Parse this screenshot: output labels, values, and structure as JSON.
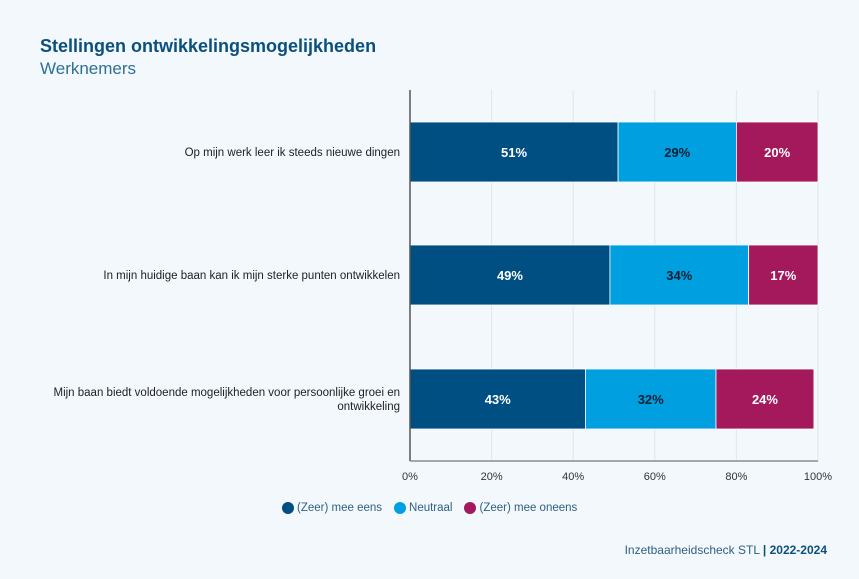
{
  "header": {
    "title": "Stellingen ontwikkelingsmogelijkheden",
    "subtitle": "Werknemers"
  },
  "chart_data": {
    "type": "bar",
    "orientation": "horizontal",
    "stacked": true,
    "title": "Stellingen ontwikkelingsmogelijkheden",
    "subtitle": "Werknemers",
    "categories": [
      [
        "Op mijn werk leer ik steeds nieuwe dingen"
      ],
      [
        "In mijn huidige baan kan ik mijn sterke punten ontwikkelen"
      ],
      [
        "Mijn baan biedt voldoende mogelijkheden voor persoonlijke groei en",
        "ontwikkeling"
      ]
    ],
    "series": [
      {
        "name": "(Zeer) mee eens",
        "color": "#004f83",
        "label_color": "#ffffff",
        "values": [
          51,
          49,
          43
        ]
      },
      {
        "name": "Neutraal",
        "color": "#009fe0",
        "label_color": "#0a1f33",
        "values": [
          29,
          34,
          32
        ]
      },
      {
        "name": "(Zeer) mee oneens",
        "color": "#a3195b",
        "label_color": "#ffffff",
        "values": [
          20,
          17,
          24
        ]
      }
    ],
    "xlim": [
      0,
      100
    ],
    "xticks": [
      0,
      20,
      40,
      60,
      80,
      100
    ],
    "xtick_labels": [
      "0%",
      "20%",
      "40%",
      "60%",
      "80%",
      "100%"
    ],
    "value_suffix": "%",
    "grid": true,
    "legend_position": "bottom-center",
    "xlabel": "",
    "ylabel": ""
  },
  "footer": {
    "source": "Inzetbaarheidscheck STL",
    "separator": "|",
    "period": "2022-2024"
  }
}
